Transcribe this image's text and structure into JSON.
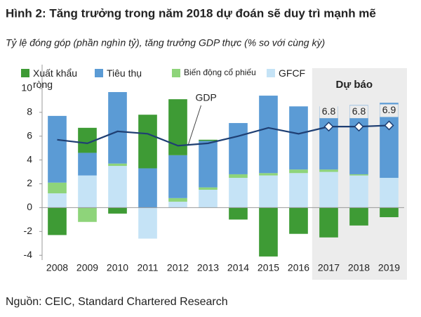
{
  "chart_data": {
    "type": "bar",
    "stacked": true,
    "title": "Hình 2: Tăng trưởng trong năm 2018 dự đoán sẽ duy trì mạnh mẽ",
    "subtitle": "Tỷ lệ đóng góp (phần nghìn tỷ), tăng trưởng GDP thực (% so với cùng kỳ)",
    "source": "Nguồn: CEIC, Standard Chartered Research",
    "categories": [
      "2008",
      "2009",
      "2010",
      "2011",
      "2012",
      "2013",
      "2014",
      "2015",
      "2016",
      "2017",
      "2018",
      "2019"
    ],
    "series": [
      {
        "name": "GFCF",
        "color": "#c5e3f6",
        "values": [
          1.2,
          2.7,
          3.5,
          -2.6,
          0.5,
          1.5,
          2.5,
          2.7,
          2.9,
          3.0,
          2.7,
          2.5
        ]
      },
      {
        "name": "Biến động cổ phiếu",
        "color": "#8ed47a",
        "values": [
          0.9,
          -1.2,
          0.2,
          0,
          0.3,
          0.2,
          0.3,
          0.2,
          0.3,
          0.2,
          0.1,
          0
        ]
      },
      {
        "name": "Tiêu thụ",
        "color": "#5b9bd5",
        "values": [
          5.6,
          1.9,
          6.0,
          3.3,
          3.6,
          3.9,
          4.3,
          6.5,
          5.3,
          5.3,
          5.8,
          6.3
        ]
      },
      {
        "name": "Xuất khẩu ròng",
        "color": "#3e9b35",
        "values": [
          -2.3,
          2.1,
          -0.5,
          4.5,
          4.7,
          0.1,
          -1.0,
          -4.1,
          -2.2,
          -2.5,
          -1.5,
          -0.8
        ]
      },
      {
        "name": "GDP",
        "type": "line",
        "color": "#1f3f73",
        "values": [
          5.7,
          5.4,
          6.4,
          6.2,
          5.2,
          5.4,
          6.0,
          6.7,
          6.2,
          6.8,
          6.8,
          6.9
        ]
      }
    ],
    "legend_order": [
      3,
      2,
      1,
      0
    ],
    "forecast": {
      "label": "Dự báo",
      "from": "2017"
    },
    "ylim": [
      -4.4,
      12
    ],
    "yticks": [
      -4,
      -2,
      0,
      2,
      4,
      6,
      8,
      10
    ],
    "grid": false
  }
}
